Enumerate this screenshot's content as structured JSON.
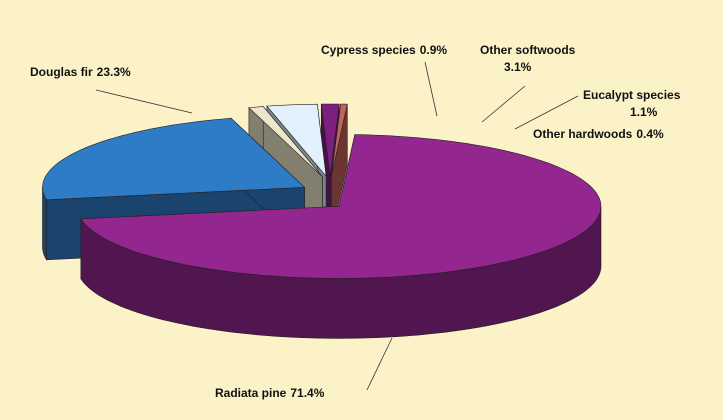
{
  "chart_data": {
    "type": "pie3d",
    "categories": [
      "Douglas fir",
      "Cypress species",
      "Other softwoods",
      "Eucalypt species",
      "Other hardwoods",
      "Radiata pine"
    ],
    "values": [
      23.3,
      0.9,
      3.1,
      1.1,
      0.4,
      71.4
    ],
    "value_labels": [
      "23.3%",
      "0.9%",
      "3.1%",
      "1.1%",
      "0.4%",
      "71.4%"
    ],
    "colors": [
      "#2f7cc6",
      "#ece7c9",
      "#e2f1fb",
      "#7d1f80",
      "#c2625b",
      "#93278f"
    ]
  }
}
